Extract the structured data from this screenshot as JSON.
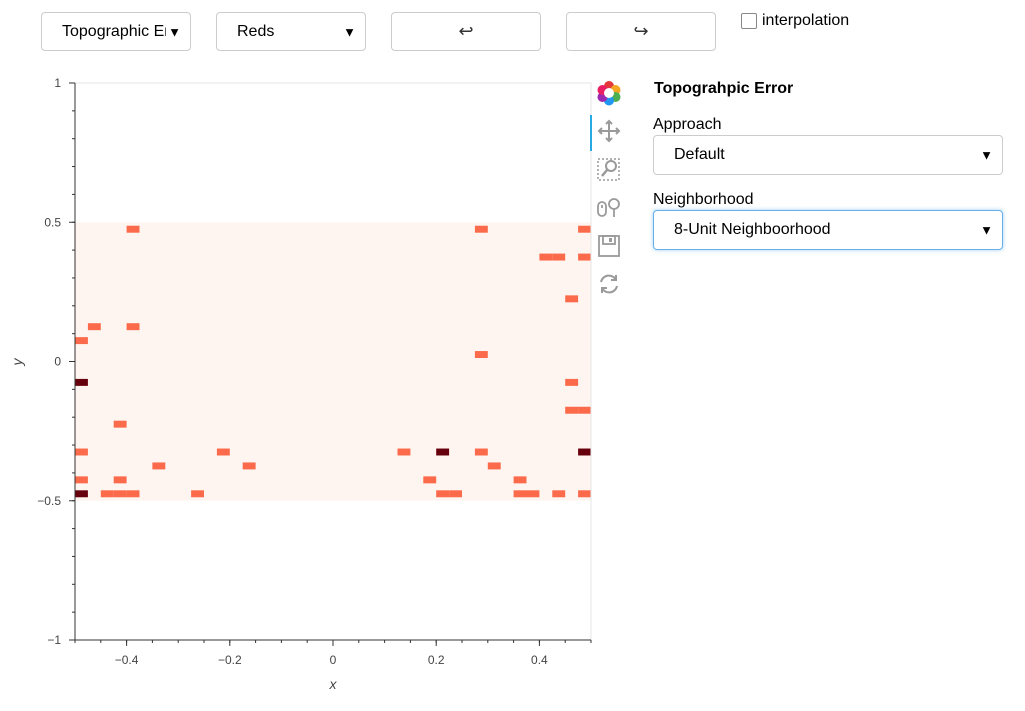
{
  "controls": {
    "variable_select": "Topographic Err",
    "cmap_select": "Reds",
    "undo_label": "↩",
    "redo_label": "↪",
    "interpolation_label": "interpolation"
  },
  "panel": {
    "title": "Topograhpic Error",
    "approach_label": "Approach",
    "approach_value": "Default",
    "neighborhood_label": "Neighborhood",
    "neighborhood_value": "8-Unit Neighboorhood"
  },
  "toolbar": {
    "tools": [
      "bokeh-logo-icon",
      "pan-icon",
      "box-zoom-icon",
      "wheel-zoom-icon",
      "save-icon",
      "reset-icon"
    ]
  },
  "chart_data": {
    "type": "heatmap",
    "xlabel": "x",
    "ylabel": "y",
    "xlim": [
      -0.5,
      0.5
    ],
    "ylim": [
      -1,
      1
    ],
    "xticks": [
      "−0.4",
      "−0.2",
      "0",
      "0.2",
      "0.4"
    ],
    "xtick_values": [
      -0.4,
      -0.2,
      0,
      0.2,
      0.4
    ],
    "yticks": [
      "−1",
      "−0.5",
      "0",
      "0.5",
      "1"
    ],
    "ytick_values": [
      -1,
      -0.5,
      0,
      0.5,
      1
    ],
    "grid": false,
    "background_region": {
      "x": [
        -0.5,
        0.5
      ],
      "y": [
        -0.5,
        0.5
      ],
      "color": "#fff5f0"
    },
    "cell_size": 0.025,
    "colors": {
      "level1": "#fb6a4a",
      "level2": "#67000d",
      "background": "#fff5f0"
    },
    "cells": [
      {
        "x": -0.3875,
        "y": 0.475,
        "level": 1
      },
      {
        "x": 0.2875,
        "y": 0.475,
        "level": 1
      },
      {
        "x": 0.4875,
        "y": 0.475,
        "level": 1
      },
      {
        "x": 0.4125,
        "y": 0.375,
        "level": 1
      },
      {
        "x": 0.4375,
        "y": 0.375,
        "level": 1
      },
      {
        "x": 0.4875,
        "y": 0.375,
        "level": 1
      },
      {
        "x": 0.4625,
        "y": 0.225,
        "level": 1
      },
      {
        "x": -0.4625,
        "y": 0.125,
        "level": 1
      },
      {
        "x": -0.3875,
        "y": 0.125,
        "level": 1
      },
      {
        "x": -0.4875,
        "y": 0.075,
        "level": 1
      },
      {
        "x": 0.2875,
        "y": 0.025,
        "level": 1
      },
      {
        "x": -0.4875,
        "y": -0.075,
        "level": 2
      },
      {
        "x": 0.4625,
        "y": -0.075,
        "level": 1
      },
      {
        "x": 0.4625,
        "y": -0.175,
        "level": 1
      },
      {
        "x": 0.4875,
        "y": -0.175,
        "level": 1
      },
      {
        "x": -0.4125,
        "y": -0.225,
        "level": 1
      },
      {
        "x": -0.4875,
        "y": -0.325,
        "level": 1
      },
      {
        "x": -0.2125,
        "y": -0.325,
        "level": 1
      },
      {
        "x": 0.1375,
        "y": -0.325,
        "level": 1
      },
      {
        "x": 0.2125,
        "y": -0.325,
        "level": 2
      },
      {
        "x": 0.2875,
        "y": -0.325,
        "level": 1
      },
      {
        "x": 0.4875,
        "y": -0.325,
        "level": 2
      },
      {
        "x": -0.3375,
        "y": -0.375,
        "level": 1
      },
      {
        "x": -0.1625,
        "y": -0.375,
        "level": 1
      },
      {
        "x": 0.3125,
        "y": -0.375,
        "level": 1
      },
      {
        "x": -0.4875,
        "y": -0.425,
        "level": 1
      },
      {
        "x": -0.4125,
        "y": -0.425,
        "level": 1
      },
      {
        "x": 0.1875,
        "y": -0.425,
        "level": 1
      },
      {
        "x": 0.3625,
        "y": -0.425,
        "level": 1
      },
      {
        "x": -0.4875,
        "y": -0.475,
        "level": 2
      },
      {
        "x": -0.4375,
        "y": -0.475,
        "level": 1
      },
      {
        "x": -0.4125,
        "y": -0.475,
        "level": 1
      },
      {
        "x": -0.3875,
        "y": -0.475,
        "level": 1
      },
      {
        "x": -0.2625,
        "y": -0.475,
        "level": 1
      },
      {
        "x": 0.2125,
        "y": -0.475,
        "level": 1
      },
      {
        "x": 0.2375,
        "y": -0.475,
        "level": 1
      },
      {
        "x": 0.3625,
        "y": -0.475,
        "level": 1
      },
      {
        "x": 0.3875,
        "y": -0.475,
        "level": 1
      },
      {
        "x": 0.4375,
        "y": -0.475,
        "level": 1
      },
      {
        "x": 0.4875,
        "y": -0.475,
        "level": 1
      }
    ]
  }
}
